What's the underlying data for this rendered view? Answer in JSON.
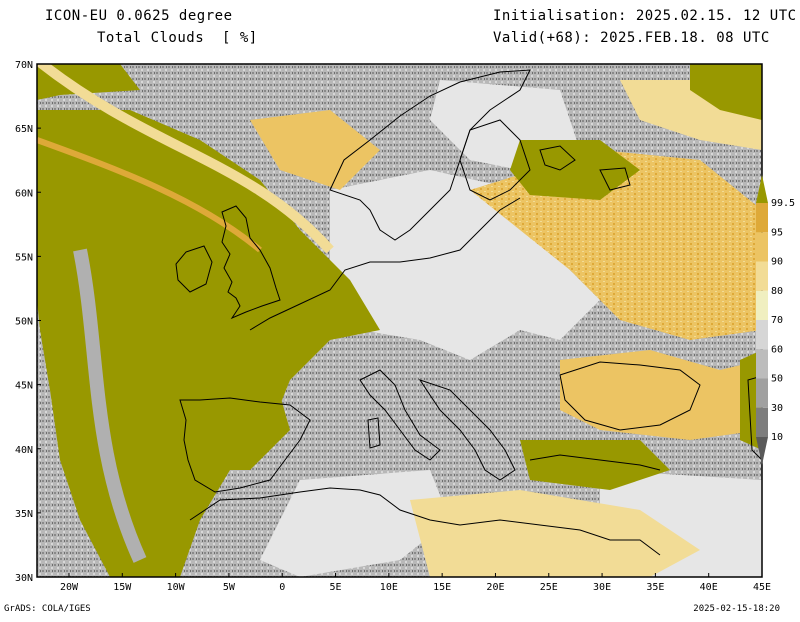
{
  "header": {
    "model": "ICON-EU 0.0625 degree",
    "field": "Total Clouds  [ %]",
    "init": "Initialisation: 2025.02.15. 12 UTC",
    "valid": "Valid(+68): 2025.FEB.18. 08 UTC"
  },
  "map": {
    "lon_labels": [
      "20W",
      "15W",
      "10W",
      "5W",
      "0",
      "5E",
      "10E",
      "15E",
      "20E",
      "25E",
      "30E",
      "35E",
      "40E",
      "45E"
    ],
    "lat_labels": [
      "70N",
      "65N",
      "60N",
      "55N",
      "50N",
      "45N",
      "40N",
      "35N",
      "30N"
    ],
    "lon_range": [
      -23,
      45
    ],
    "lat_range": [
      30,
      70
    ]
  },
  "legend": {
    "levels": [
      "10",
      "30",
      "50",
      "60",
      "70",
      "80",
      "90",
      "95",
      "99.5"
    ],
    "colors": [
      "#5a5a5a",
      "#7d7d7d",
      "#a0a0a0",
      "#bcbcbc",
      "#d6d6d6",
      "#f0efc0",
      "#f2dc96",
      "#ecc463",
      "#dea938",
      "#989800"
    ]
  },
  "colors": {
    "full_cloud": "#989800",
    "heavy": "#dea938",
    "medium": "#ecc463",
    "light": "#f2dc96",
    "clear": "#e6e6e6",
    "coast": "#000000"
  },
  "footer": {
    "credit": "GrADS: COLA/IGES",
    "timestamp": "2025-02-15-18:20"
  }
}
